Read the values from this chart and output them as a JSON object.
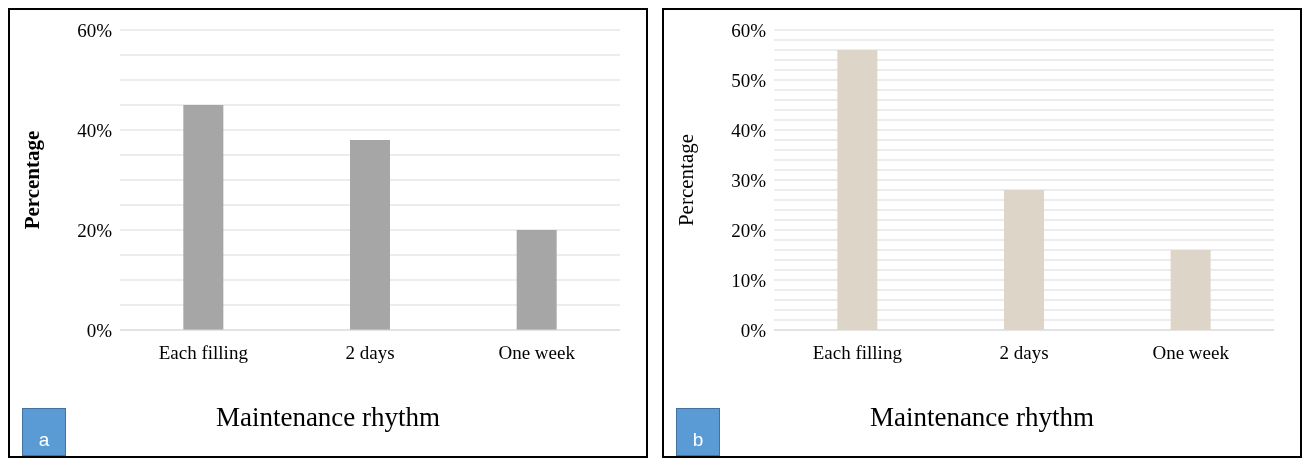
{
  "chart_data": [
    {
      "type": "bar",
      "categories": [
        "Each filling",
        "2 days",
        "One week"
      ],
      "values": [
        45,
        38,
        20
      ],
      "color": "#a6a6a6",
      "xlabel": "Maintenance rhythm",
      "ylabel": "Percentage",
      "ylim": [
        0,
        60
      ],
      "yticks": [
        {
          "value": 0,
          "label": "0%"
        },
        {
          "value": 5,
          "label": null
        },
        {
          "value": 10,
          "label": null
        },
        {
          "value": 15,
          "label": null
        },
        {
          "value": 20,
          "label": "20%"
        },
        {
          "value": 25,
          "label": null
        },
        {
          "value": 30,
          "label": null
        },
        {
          "value": 35,
          "label": null
        },
        {
          "value": 40,
          "label": "40%"
        },
        {
          "value": 45,
          "label": null
        },
        {
          "value": 50,
          "label": null
        },
        {
          "value": 55,
          "label": null
        },
        {
          "value": 60,
          "label": "60%"
        }
      ],
      "grid": "y",
      "annotations": [
        "a"
      ]
    },
    {
      "type": "bar",
      "categories": [
        "Each filling",
        "2 days",
        "One week"
      ],
      "values": [
        56,
        28,
        16
      ],
      "color": "#ddd5c8",
      "xlabel": "Maintenance rhythm",
      "ylabel": "Percentage",
      "ylim": [
        0,
        60
      ],
      "yticks": [
        {
          "value": 0,
          "label": "0%"
        },
        {
          "value": 2,
          "label": null
        },
        {
          "value": 4,
          "label": null
        },
        {
          "value": 6,
          "label": null
        },
        {
          "value": 8,
          "label": null
        },
        {
          "value": 10,
          "label": "10%"
        },
        {
          "value": 12,
          "label": null
        },
        {
          "value": 14,
          "label": null
        },
        {
          "value": 16,
          "label": null
        },
        {
          "value": 18,
          "label": null
        },
        {
          "value": 20,
          "label": "20%"
        },
        {
          "value": 22,
          "label": null
        },
        {
          "value": 24,
          "label": null
        },
        {
          "value": 26,
          "label": null
        },
        {
          "value": 28,
          "label": null
        },
        {
          "value": 30,
          "label": "30%"
        },
        {
          "value": 32,
          "label": null
        },
        {
          "value": 34,
          "label": null
        },
        {
          "value": 36,
          "label": null
        },
        {
          "value": 38,
          "label": null
        },
        {
          "value": 40,
          "label": "40%"
        },
        {
          "value": 42,
          "label": null
        },
        {
          "value": 44,
          "label": null
        },
        {
          "value": 46,
          "label": null
        },
        {
          "value": 48,
          "label": null
        },
        {
          "value": 50,
          "label": "50%"
        },
        {
          "value": 52,
          "label": null
        },
        {
          "value": 54,
          "label": null
        },
        {
          "value": 56,
          "label": null
        },
        {
          "value": 58,
          "label": null
        },
        {
          "value": 60,
          "label": "60%"
        }
      ],
      "grid": "y",
      "annotations": [
        "b"
      ]
    }
  ]
}
